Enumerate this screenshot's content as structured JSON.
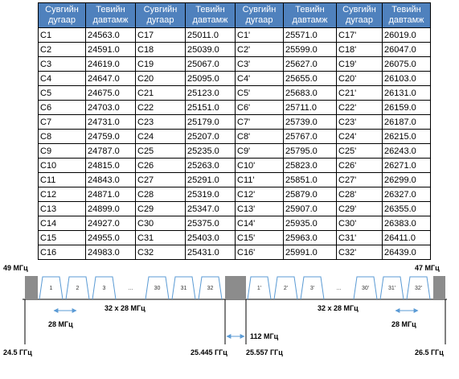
{
  "table": {
    "headers": [
      [
        "Сувгийн",
        "дугаар"
      ],
      [
        "Тевийн",
        "давтамж"
      ],
      [
        "Сувгийн",
        "дугаар"
      ],
      [
        "Тевийн",
        "давтамж"
      ],
      [
        "Сувгийн",
        "дугаар"
      ],
      [
        "Тевийн",
        "давтамж"
      ],
      [
        "Сувгийн",
        "дугаар"
      ],
      [
        "Тевийн",
        "давтамж"
      ]
    ],
    "rows": [
      [
        "C1",
        "24563.0",
        "C17",
        "25011.0",
        "C1'",
        "25571.0",
        "C17'",
        "26019.0"
      ],
      [
        "C2",
        "24591.0",
        "C18",
        "25039.0",
        "C2'",
        "25599.0",
        "C18'",
        "26047.0"
      ],
      [
        "C3",
        "24619.0",
        "C19",
        "25067.0",
        "C3'",
        "25627.0",
        "C19'",
        "26075.0"
      ],
      [
        "C4",
        "24647.0",
        "C20",
        "25095.0",
        "C4'",
        "25655.0",
        "C20'",
        "26103.0"
      ],
      [
        "C5",
        "24675.0",
        "C21",
        "25123.0",
        "C5'",
        "25683.0",
        "C21'",
        "26131.0"
      ],
      [
        "C6",
        "24703.0",
        "C22",
        "25151.0",
        "C6'",
        "25711.0",
        "C22'",
        "26159.0"
      ],
      [
        "C7",
        "24731.0",
        "C23",
        "25179.0",
        "C7'",
        "25739.0",
        "C23'",
        "26187.0"
      ],
      [
        "C8",
        "24759.0",
        "C24",
        "25207.0",
        "C8'",
        "25767.0",
        "C24'",
        "26215.0"
      ],
      [
        "C9",
        "24787.0",
        "C25",
        "25235.0",
        "C9'",
        "25795.0",
        "C25'",
        "26243.0"
      ],
      [
        "C10",
        "24815.0",
        "C26",
        "25263.0",
        "C10'",
        "25823.0",
        "C26'",
        "26271.0"
      ],
      [
        "C11",
        "24843.0",
        "C27",
        "25291.0",
        "C11'",
        "25851.0",
        "C27'",
        "26299.0"
      ],
      [
        "C12",
        "24871.0",
        "C28",
        "25319.0",
        "C12'",
        "25879.0",
        "C28'",
        "26327.0"
      ],
      [
        "C13",
        "24899.0",
        "C29",
        "25347.0",
        "C13'",
        "25907.0",
        "C29'",
        "26355.0"
      ],
      [
        "C14",
        "24927.0",
        "C30",
        "25375.0",
        "C14'",
        "25935.0",
        "C30'",
        "26383.0"
      ],
      [
        "C15",
        "24955.0",
        "C31",
        "25403.0",
        "C15'",
        "25963.0",
        "C31'",
        "26411.0"
      ],
      [
        "C16",
        "24983.0",
        "C32",
        "25431.0",
        "C16'",
        "25991.0",
        "C32'",
        "26439.0"
      ]
    ]
  },
  "diagram": {
    "guard_left_label": "49 МГц",
    "guard_right_label": "47 МГц",
    "left_channels": [
      "1",
      "2",
      "3",
      "...",
      "30",
      "31",
      "32"
    ],
    "right_channels": [
      "1'",
      "2'",
      "3'",
      "...",
      "30'",
      "31'",
      "32'"
    ],
    "left_band_label": "32 x 28 МГц",
    "right_band_label": "32 x 28 МГц",
    "left_spacing_label": "28 МГц",
    "right_spacing_label": "28 МГц",
    "center_gap_label": "112 МГц",
    "freq_start": "24.5 ГГц",
    "freq_mid_left": "25.445 ГГц",
    "freq_mid_right": "25.557 ГГц",
    "freq_end": "26.5 ГГц",
    "colors": {
      "header_bg": "#4f81bd",
      "guard": "#8c8c8c",
      "channel": "#5b9bd5",
      "arrow": "#5b9bd5"
    }
  }
}
